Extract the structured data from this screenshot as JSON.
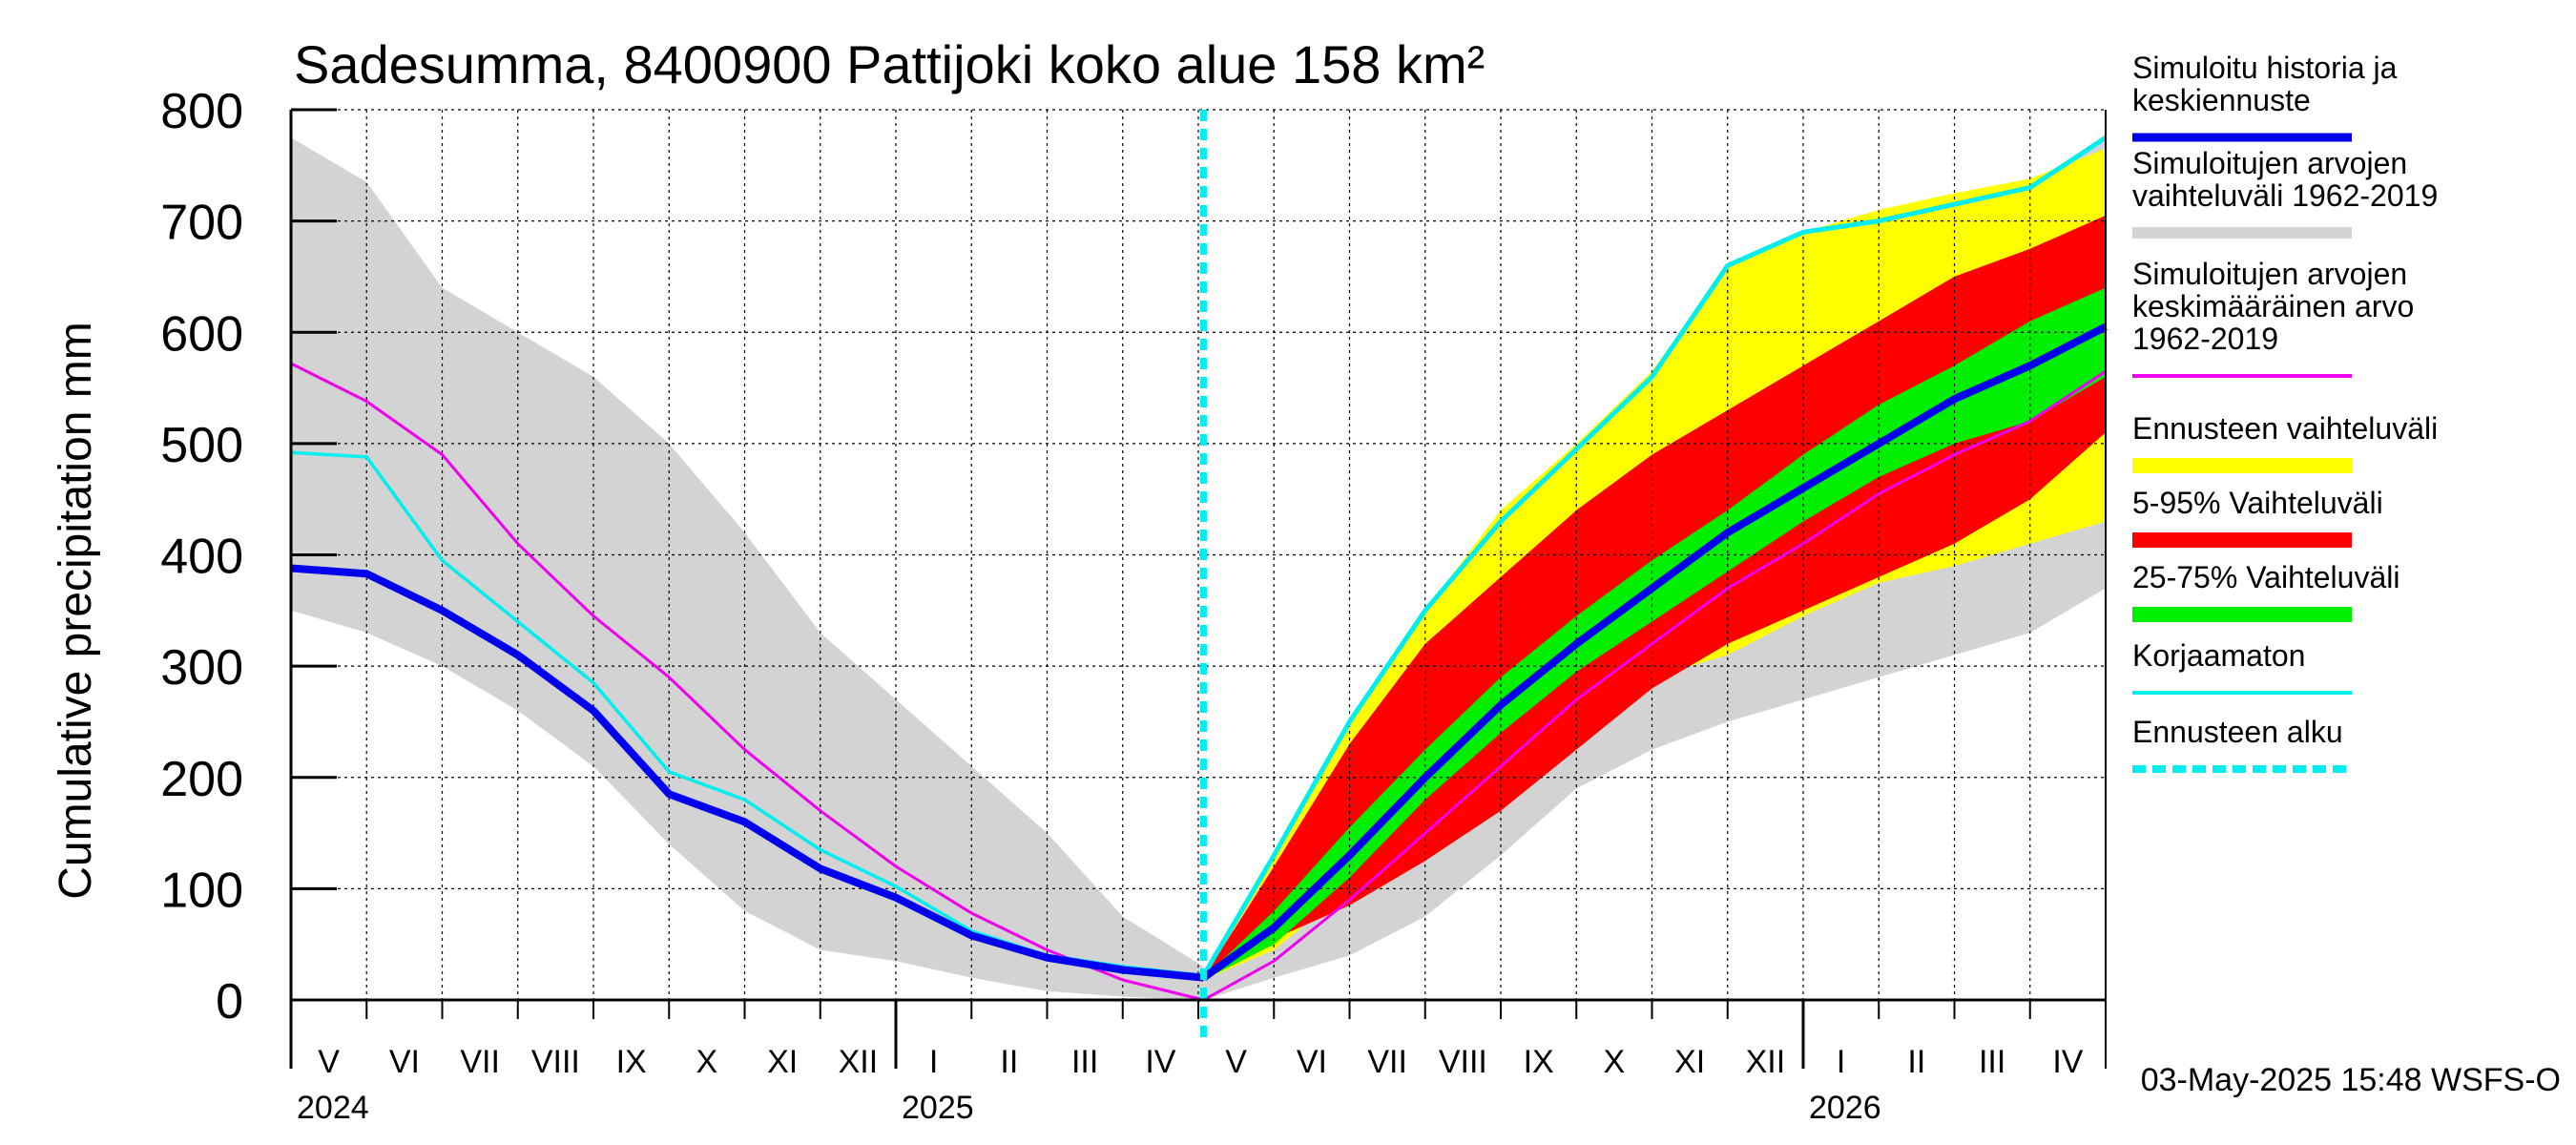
{
  "chart_data": {
    "type": "area",
    "title": "Sadesumma, 8400900 Pattijoki koko alue 158 km²",
    "ylabel": "Cumulative precipitation   mm",
    "xlabel": "",
    "ylim": [
      0,
      800
    ],
    "y_ticks": [
      0,
      100,
      200,
      300,
      400,
      500,
      600,
      700,
      800
    ],
    "grid": true,
    "x_unit": "months since 2024-05-01",
    "xlim": [
      0,
      24
    ],
    "forecast_start": 12.07,
    "month_labels": [
      "V",
      "VI",
      "VII",
      "VIII",
      "IX",
      "X",
      "XI",
      "XII",
      "I",
      "II",
      "III",
      "IV",
      "V",
      "VI",
      "VII",
      "VIII",
      "IX",
      "X",
      "XI",
      "XII",
      "I",
      "II",
      "III",
      "IV"
    ],
    "year_labels": [
      {
        "label": "2024",
        "x": 0
      },
      {
        "label": "2025",
        "x": 8
      },
      {
        "label": "2026",
        "x": 20
      }
    ],
    "timestamp": "03-May-2025 15:48 WSFS-O",
    "series": [
      {
        "name": "hist_range_upper",
        "color": "#d3d3d3",
        "x": [
          0,
          1,
          2,
          3,
          4,
          5,
          6,
          7,
          8,
          9,
          10,
          11,
          12.07
        ],
        "values": [
          775,
          735,
          640,
          600,
          560,
          500,
          420,
          330,
          270,
          210,
          150,
          75,
          30
        ]
      },
      {
        "name": "hist_range_lower",
        "color": "#d3d3d3",
        "x": [
          0,
          1,
          2,
          3,
          4,
          5,
          6,
          7,
          8,
          9,
          10,
          11,
          12.07
        ],
        "values": [
          350,
          330,
          300,
          260,
          210,
          140,
          80,
          45,
          35,
          20,
          8,
          3,
          0
        ]
      },
      {
        "name": "Simuloitu historia ja keskiennuste",
        "color": "#0000ee",
        "x": [
          0,
          1,
          2,
          3,
          4,
          5,
          6,
          7,
          8,
          9,
          10,
          11,
          12.07
        ],
        "values": [
          388,
          383,
          350,
          310,
          260,
          185,
          160,
          118,
          92,
          58,
          38,
          27,
          20
        ]
      },
      {
        "name": "Korjaamaton",
        "color": "#00eeee",
        "x": [
          0,
          1,
          2,
          3,
          4,
          5,
          6,
          7,
          8,
          9,
          10,
          11,
          12.07
        ],
        "values": [
          492,
          488,
          395,
          340,
          285,
          205,
          180,
          135,
          102,
          62,
          40,
          30,
          22
        ]
      },
      {
        "name": "Simuloitujen arvojen keskimääräinen arvo 1962-2019",
        "color": "#ee00ee",
        "x": [
          0,
          1,
          2,
          3,
          4,
          5,
          6,
          7,
          8,
          9,
          10,
          11,
          12.07,
          13,
          14,
          15,
          16,
          17,
          18,
          19,
          20,
          21,
          22,
          23,
          24
        ],
        "values": [
          572,
          538,
          490,
          410,
          345,
          290,
          225,
          170,
          120,
          78,
          45,
          18,
          0,
          35,
          90,
          150,
          210,
          270,
          320,
          370,
          410,
          455,
          490,
          520,
          565
        ]
      },
      {
        "name": "fc_hist_upper",
        "color": "#d3d3d3",
        "x": [
          12.07,
          13,
          14,
          15,
          16,
          17,
          18,
          19,
          20,
          21,
          22,
          23,
          24
        ],
        "values": [
          20,
          110,
          230,
          330,
          420,
          480,
          545,
          590,
          650,
          680,
          712,
          730,
          778
        ]
      },
      {
        "name": "fc_hist_lower",
        "color": "#d3d3d3",
        "x": [
          12.07,
          13,
          14,
          15,
          16,
          17,
          18,
          19,
          20,
          21,
          22,
          23,
          24
        ],
        "values": [
          0,
          20,
          40,
          75,
          130,
          190,
          225,
          250,
          270,
          290,
          310,
          330,
          370
        ]
      },
      {
        "name": "Ennusteen vaihteluväli upper",
        "color": "#ffff00",
        "x": [
          12.07,
          13,
          14,
          15,
          16,
          17,
          18,
          19,
          20,
          21,
          22,
          23,
          24
        ],
        "values": [
          20,
          130,
          250,
          350,
          440,
          500,
          565,
          660,
          690,
          710,
          725,
          738,
          765
        ]
      },
      {
        "name": "Ennusteen vaihteluväli lower",
        "color": "#ffff00",
        "x": [
          12.07,
          13,
          14,
          15,
          16,
          17,
          18,
          19,
          20,
          21,
          22,
          23,
          24
        ],
        "values": [
          18,
          45,
          100,
          150,
          200,
          280,
          290,
          310,
          345,
          375,
          390,
          410,
          430
        ]
      },
      {
        "name": "5-95% Vaihteluväli upper",
        "color": "#ff0000",
        "x": [
          12.07,
          13,
          14,
          15,
          16,
          17,
          18,
          19,
          20,
          21,
          22,
          23,
          24
        ],
        "values": [
          20,
          120,
          230,
          320,
          380,
          440,
          490,
          530,
          570,
          610,
          650,
          675,
          705
        ]
      },
      {
        "name": "5-95% Vaihteluväli lower",
        "color": "#ff0000",
        "x": [
          12.07,
          13,
          14,
          15,
          16,
          17,
          18,
          19,
          20,
          21,
          22,
          23,
          24
        ],
        "values": [
          18,
          55,
          85,
          125,
          170,
          225,
          280,
          320,
          350,
          380,
          410,
          450,
          510
        ]
      },
      {
        "name": "25-75% Vaihteluväli upper",
        "color": "#00ee00",
        "x": [
          12.07,
          13,
          14,
          15,
          16,
          17,
          18,
          19,
          20,
          21,
          22,
          23,
          24
        ],
        "values": [
          20,
          80,
          155,
          225,
          290,
          345,
          395,
          440,
          490,
          535,
          570,
          610,
          640
        ]
      },
      {
        "name": "25-75% Vaihteluväli lower",
        "color": "#00ee00",
        "x": [
          12.07,
          13,
          14,
          15,
          16,
          17,
          18,
          19,
          20,
          21,
          22,
          23,
          24
        ],
        "values": [
          18,
          50,
          110,
          180,
          240,
          295,
          340,
          385,
          430,
          470,
          500,
          520,
          560
        ]
      },
      {
        "name": "fc_median",
        "color": "#0000ee",
        "x": [
          12.07,
          13,
          14,
          15,
          16,
          17,
          18,
          19,
          20,
          21,
          22,
          23,
          24
        ],
        "values": [
          20,
          65,
          130,
          200,
          265,
          320,
          370,
          420,
          460,
          500,
          540,
          570,
          605
        ]
      },
      {
        "name": "fc_korjaamaton",
        "color": "#00eeee",
        "x": [
          12.07,
          13,
          14,
          15,
          16,
          17,
          18,
          19,
          20,
          21,
          22,
          23,
          24
        ],
        "values": [
          22,
          130,
          250,
          350,
          430,
          495,
          560,
          660,
          690,
          700,
          715,
          730,
          775
        ]
      }
    ],
    "legend": [
      {
        "label": "Simuloitu historia ja keskiennuste",
        "color": "#0000ee",
        "style": "line"
      },
      {
        "label": "Simuloitujen arvojen vaihteluväli 1962-2019",
        "color": "#d3d3d3",
        "style": "line"
      },
      {
        "label": "Simuloitujen arvojen keskimääräinen arvo    1962-2019",
        "color": "#ee00ee",
        "style": "thin"
      },
      {
        "label": "Ennusteen vaihteluväli",
        "color": "#ffff00",
        "style": "band"
      },
      {
        "label": "5-95% Vaihteluväli",
        "color": "#ff0000",
        "style": "band"
      },
      {
        "label": "25-75% Vaihteluväli",
        "color": "#00ee00",
        "style": "band"
      },
      {
        "label": "Korjaamaton",
        "color": "#00eeee",
        "style": "thin"
      },
      {
        "label": "Ennusteen alku",
        "color": "#00eeee",
        "style": "dashed"
      }
    ]
  }
}
